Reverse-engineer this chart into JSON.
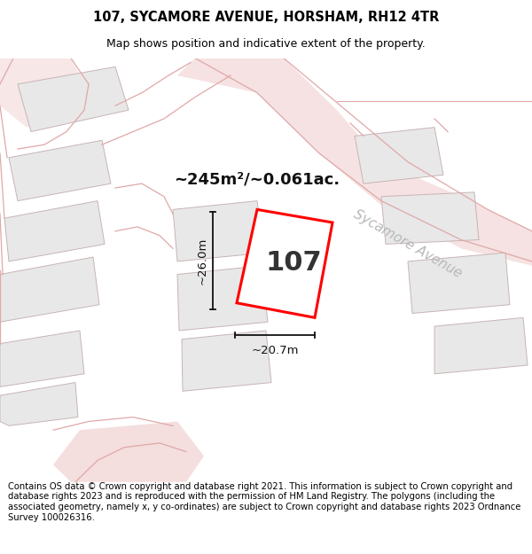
{
  "title": "107, SYCAMORE AVENUE, HORSHAM, RH12 4TR",
  "subtitle": "Map shows position and indicative extent of the property.",
  "footer": "Contains OS data © Crown copyright and database right 2021. This information is subject to Crown copyright and database rights 2023 and is reproduced with the permission of HM Land Registry. The polygons (including the associated geometry, namely x, y co-ordinates) are subject to Crown copyright and database rights 2023 Ordnance Survey 100026316.",
  "area_label": "~245m²/~0.061ac.",
  "width_label": "~20.7m",
  "height_label": "~26.0m",
  "number_label": "107",
  "bg_color": "#ffffff",
  "plot_fill": "#e8e8e8",
  "plot_edge": "#c8b4b4",
  "road_fill": "#f0d0d0",
  "road_edge": "#e0b0b0",
  "highlight_edge": "#ff0000",
  "highlight_fill": "#ffffff",
  "dim_color": "#111111",
  "street_color": "#b8b8b8",
  "title_fontsize": 10.5,
  "subtitle_fontsize": 9.0,
  "footer_fontsize": 7.2,
  "area_fontsize": 13,
  "number_fontsize": 22,
  "dim_fontsize": 9.5,
  "street_fontsize": 11
}
